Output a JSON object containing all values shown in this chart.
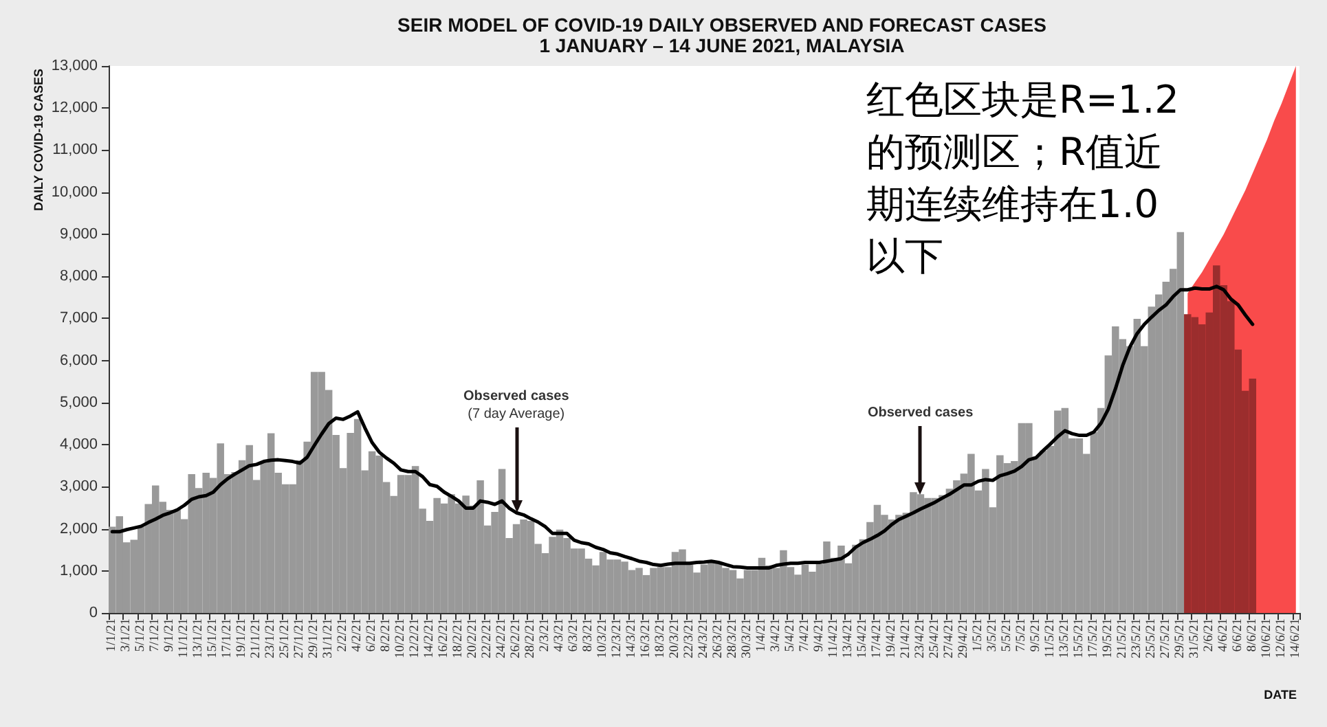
{
  "chart_data": {
    "type": "bar",
    "title": "SEIR MODEL OF COVID-19 DAILY OBSERVED AND FORECAST CASES",
    "subtitle": "1 JANUARY – 14 JUNE 2021, MALAYSIA",
    "xlabel": "DATE",
    "ylabel": "DAILY COVID-19 CASES",
    "categories": [
      "1/1/21",
      null,
      "3/1/21",
      null,
      "5/1/21",
      null,
      "7/1/21",
      null,
      "9/1/21",
      null,
      "11/1/21",
      null,
      "13/1/21",
      null,
      "15/1/21",
      null,
      "17/1/21",
      null,
      "19/1/21",
      null,
      "21/1/21",
      null,
      "23/1/21",
      null,
      "25/1/21",
      null,
      "27/1/21",
      null,
      "29/1/21",
      null,
      "31/1/21",
      null,
      "2/2/21",
      null,
      "4/2/21",
      null,
      "6/2/21",
      null,
      "8/2/21",
      null,
      "10/2/21",
      null,
      "12/2/21",
      null,
      "14/2/21",
      null,
      "16/2/21",
      null,
      "18/2/21",
      null,
      "20/2/21",
      null,
      "22/2/21",
      null,
      "24/2/21",
      null,
      "26/2/21",
      null,
      "28/2/21",
      null,
      "2/3/21",
      null,
      "4/3/21",
      null,
      "6/3/21",
      null,
      "8/3/21",
      null,
      "10/3/21",
      null,
      "12/3/21",
      null,
      "14/3/21",
      null,
      "16/3/21",
      null,
      "18/3/21",
      null,
      "20/3/21",
      null,
      "22/3/21",
      null,
      "24/3/21",
      null,
      "26/3/21",
      null,
      "28/3/21",
      null,
      "30/3/21",
      null,
      "1/4/21",
      null,
      "3/4/21",
      null,
      "5/4/21",
      null,
      "7/4/21",
      null,
      "9/4/21",
      null,
      "11/4/21",
      null,
      "13/4/21",
      null,
      "15/4/21",
      null,
      "17/4/21",
      null,
      "19/4/21",
      null,
      "21/4/21",
      null,
      "23/4/21",
      null,
      "25/4/21",
      null,
      "27/4/21",
      null,
      "29/4/21",
      null,
      "1/5/21",
      null,
      "3/5/21",
      null,
      "5/5/21",
      null,
      "7/5/21",
      null,
      "9/5/21",
      null,
      "11/5/21",
      null,
      "13/5/21",
      null,
      "15/5/21",
      null,
      "17/5/21",
      null,
      "19/5/21",
      null,
      "21/5/21",
      null,
      "23/5/21",
      null,
      "25/5/21",
      null,
      "27/5/21",
      null,
      "29/5/21",
      null,
      "31/5/21",
      null,
      "2/6/21",
      null,
      "4/6/21",
      null,
      "6/6/21",
      null,
      "8/6/21",
      null,
      "10/6/21",
      null,
      "12/6/21",
      null,
      "14/6/21"
    ],
    "series": [
      {
        "type": "area",
        "color": "#f94b4b",
        "values": [
          null,
          null,
          null,
          null,
          null,
          null,
          null,
          null,
          null,
          null,
          null,
          null,
          null,
          null,
          null,
          null,
          null,
          null,
          null,
          null,
          null,
          null,
          null,
          null,
          null,
          null,
          null,
          null,
          null,
          null,
          null,
          null,
          null,
          null,
          null,
          null,
          null,
          null,
          null,
          null,
          null,
          null,
          null,
          null,
          null,
          null,
          null,
          null,
          null,
          null,
          null,
          null,
          null,
          null,
          null,
          null,
          null,
          null,
          null,
          null,
          null,
          null,
          null,
          null,
          null,
          null,
          null,
          null,
          null,
          null,
          null,
          null,
          null,
          null,
          null,
          null,
          null,
          null,
          null,
          null,
          null,
          null,
          null,
          null,
          null,
          null,
          null,
          null,
          null,
          null,
          null,
          null,
          null,
          null,
          null,
          null,
          null,
          null,
          null,
          null,
          null,
          null,
          null,
          null,
          null,
          null,
          null,
          null,
          null,
          null,
          null,
          null,
          null,
          null,
          null,
          null,
          null,
          null,
          null,
          null,
          null,
          null,
          null,
          null,
          null,
          null,
          null,
          null,
          null,
          null,
          null,
          null,
          null,
          null,
          null,
          null,
          null,
          null,
          null,
          null,
          null,
          null,
          null,
          null,
          null,
          null,
          null,
          null,
          null,
          7600,
          7850,
          8100,
          8400,
          8700,
          9000,
          9350,
          9700,
          10050,
          10450,
          10850,
          11250,
          11700,
          12100,
          12550,
          13000
        ]
      },
      {
        "color": "#999999",
        "values": [
          2050,
          2300,
          1680,
          1740,
          2050,
          2590,
          3030,
          2640,
          2450,
          2450,
          2230,
          3300,
          2970,
          3330,
          3210,
          4030,
          3300,
          3350,
          3630,
          3990,
          3160,
          3570,
          4270,
          3330,
          3060,
          3060,
          3630,
          4070,
          5730,
          5730,
          5300,
          4230,
          3440,
          4280,
          4610,
          3390,
          3840,
          3740,
          3110,
          2780,
          3280,
          3280,
          3490,
          2480,
          2190,
          2730,
          2600,
          2820,
          2600,
          2790,
          2550,
          3150,
          2080,
          2400,
          3420,
          1780,
          2110,
          2220,
          2190,
          1640,
          1420,
          1810,
          1980,
          1780,
          1530,
          1530,
          1290,
          1130,
          1450,
          1270,
          1270,
          1220,
          1020,
          1070,
          900,
          1070,
          1090,
          1090,
          1450,
          1510,
          1150,
          960,
          1150,
          1200,
          1200,
          1070,
          1020,
          820,
          1020,
          1020,
          1310,
          1130,
          1070,
          1490,
          1090,
          910,
          1150,
          980,
          1160,
          1700,
          1310,
          1600,
          1180,
          1620,
          1750,
          2160,
          2570,
          2330,
          2220,
          2330,
          2380,
          2870,
          2820,
          2730,
          2730,
          2800,
          2950,
          3150,
          3310,
          3780,
          2910,
          3420,
          2510,
          3750,
          3560,
          3610,
          4510,
          4510,
          3720,
          3860,
          3970,
          4810,
          4870,
          4150,
          4150,
          3780,
          4300,
          4870,
          6120,
          6810,
          6510,
          6340,
          6990,
          6340,
          7280,
          7570,
          7870,
          8180,
          9050,
          7100,
          7030,
          6860,
          7140,
          8260,
          7790,
          7410,
          6260,
          5280,
          5570,
          null,
          null,
          null,
          null,
          null,
          null
        ],
        "colors": [
          "#999999",
          "#999999",
          "#999999",
          "#999999",
          "#999999",
          "#999999",
          "#999999",
          "#999999",
          "#999999",
          "#999999",
          "#999999",
          "#999999",
          "#999999",
          "#999999",
          "#999999",
          "#999999",
          "#999999",
          "#999999",
          "#999999",
          "#999999",
          "#999999",
          "#999999",
          "#999999",
          "#999999",
          "#999999",
          "#999999",
          "#999999",
          "#999999",
          "#999999",
          "#999999",
          "#999999",
          "#999999",
          "#999999",
          "#999999",
          "#999999",
          "#999999",
          "#999999",
          "#999999",
          "#999999",
          "#999999",
          "#999999",
          "#999999",
          "#999999",
          "#999999",
          "#999999",
          "#999999",
          "#999999",
          "#999999",
          "#999999",
          "#999999",
          "#999999",
          "#999999",
          "#999999",
          "#999999",
          "#999999",
          "#999999",
          "#999999",
          "#999999",
          "#999999",
          "#999999",
          "#999999",
          "#999999",
          "#999999",
          "#999999",
          "#999999",
          "#999999",
          "#999999",
          "#999999",
          "#999999",
          "#999999",
          "#999999",
          "#999999",
          "#999999",
          "#999999",
          "#999999",
          "#999999",
          "#999999",
          "#999999",
          "#999999",
          "#999999",
          "#999999",
          "#999999",
          "#999999",
          "#999999",
          "#999999",
          "#999999",
          "#999999",
          "#999999",
          "#999999",
          "#999999",
          "#999999",
          "#999999",
          "#999999",
          "#999999",
          "#999999",
          "#999999",
          "#999999",
          "#999999",
          "#999999",
          "#999999",
          "#999999",
          "#999999",
          "#999999",
          "#999999",
          "#999999",
          "#999999",
          "#999999",
          "#999999",
          "#999999",
          "#999999",
          "#999999",
          "#999999",
          "#999999",
          "#999999",
          "#999999",
          "#999999",
          "#999999",
          "#999999",
          "#999999",
          "#999999",
          "#999999",
          "#999999",
          "#999999",
          "#999999",
          "#999999",
          "#999999",
          "#999999",
          "#999999",
          "#999999",
          "#999999",
          "#999999",
          "#999999",
          "#999999",
          "#999999",
          "#999999",
          "#999999",
          "#999999",
          "#999999",
          "#999999",
          "#999999",
          "#999999",
          "#999999",
          "#999999",
          "#999999",
          "#999999",
          "#999999",
          "#999999",
          "#999999",
          "#999999",
          "#9b2d2d",
          "#9b2d2d",
          "#9b2d2d",
          "#9b2d2d",
          "#9b2d2d",
          "#9b2d2d",
          "#9b2d2d",
          "#9b2d2d",
          "#9b2d2d",
          "#9b2d2d",
          null,
          null,
          null,
          null,
          null,
          null
        ]
      },
      {
        "type": "line",
        "color": "#000000",
        "line_style": "solid",
        "values": [
          1930,
          1930,
          1980,
          2020,
          2060,
          2150,
          2230,
          2320,
          2380,
          2450,
          2560,
          2700,
          2760,
          2790,
          2870,
          3050,
          3190,
          3300,
          3400,
          3500,
          3530,
          3600,
          3630,
          3640,
          3620,
          3600,
          3560,
          3700,
          3980,
          4250,
          4500,
          4630,
          4600,
          4680,
          4780,
          4400,
          4050,
          3820,
          3680,
          3560,
          3400,
          3360,
          3360,
          3240,
          3050,
          3010,
          2870,
          2770,
          2660,
          2490,
          2490,
          2660,
          2630,
          2580,
          2660,
          2490,
          2380,
          2330,
          2240,
          2160,
          2050,
          1890,
          1890,
          1890,
          1730,
          1670,
          1640,
          1560,
          1510,
          1430,
          1400,
          1340,
          1290,
          1230,
          1200,
          1150,
          1130,
          1160,
          1180,
          1180,
          1180,
          1200,
          1210,
          1230,
          1200,
          1150,
          1100,
          1090,
          1070,
          1070,
          1070,
          1070,
          1130,
          1160,
          1180,
          1180,
          1200,
          1200,
          1200,
          1230,
          1260,
          1290,
          1400,
          1560,
          1670,
          1750,
          1840,
          1950,
          2100,
          2220,
          2300,
          2380,
          2470,
          2550,
          2630,
          2730,
          2820,
          2930,
          3040,
          3040,
          3130,
          3170,
          3150,
          3260,
          3310,
          3370,
          3480,
          3640,
          3690,
          3860,
          4020,
          4190,
          4330,
          4260,
          4220,
          4220,
          4300,
          4510,
          4840,
          5330,
          5880,
          6320,
          6640,
          6860,
          7030,
          7190,
          7320,
          7520,
          7680,
          7680,
          7720,
          7700,
          7700,
          7760,
          7680,
          7460,
          7320,
          7080,
          6860,
          null,
          null,
          null,
          null,
          null,
          null
        ]
      }
    ],
    "ylim": [
      0,
      13000
    ],
    "yticks": [
      0,
      {
        "value": 1000,
        "label": "1,000"
      },
      {
        "value": 2000,
        "label": "2,000"
      },
      {
        "value": 3000,
        "label": "3,000"
      },
      {
        "value": 4000,
        "label": "4,000"
      },
      {
        "value": 5000,
        "label": "5,000"
      },
      {
        "value": 6000,
        "label": "6,000"
      },
      {
        "value": 7000,
        "label": "7,000"
      },
      {
        "value": 8000,
        "label": "8,000"
      },
      {
        "value": 9000,
        "label": "9,000"
      },
      {
        "value": 10000,
        "label": "10,000"
      },
      {
        "value": 11000,
        "label": "11,000"
      },
      {
        "value": 12000,
        "label": "12,000"
      },
      {
        "value": 13000,
        "label": "13,000"
      }
    ],
    "grid": false,
    "annotations": [
      {
        "text": "Observed cases\n(7 day Average)",
        "x": "26/2/21",
        "y": 2380
      },
      {
        "text": "Observed cases",
        "x": "23/4/21",
        "y": 2820
      },
      "红色区块是R=1.2的预测区；R值近期连续维持在1.0以下"
    ]
  }
}
